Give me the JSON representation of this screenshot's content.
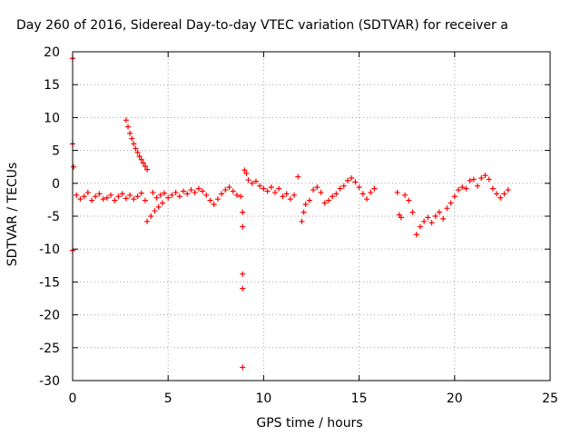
{
  "chart_data": {
    "type": "scatter",
    "title": "Day 260 of 2016, Sidereal Day-to-day VTEC variation (SDTVAR) for receiver a",
    "xlabel": "GPS time / hours",
    "ylabel": "SDTVAR / TECUs",
    "xlim": [
      0,
      25
    ],
    "ylim": [
      -30,
      20
    ],
    "xticks": [
      0,
      5,
      10,
      15,
      20,
      25
    ],
    "yticks": [
      20,
      15,
      10,
      5,
      0,
      -5,
      -10,
      -15,
      -20,
      -25,
      -30
    ],
    "xtick_labels": [
      "0",
      "5",
      "10",
      "15",
      "20",
      "25"
    ],
    "ytick_labels": [
      "20",
      "15",
      "10",
      "5",
      "0",
      "-5",
      "-10",
      "-15",
      "-20",
      "-25",
      "-30"
    ],
    "grid": true,
    "marker": "+",
    "color": "#ff0000",
    "series": [
      {
        "name": "SDTVAR",
        "points": [
          [
            0.0,
            19.0
          ],
          [
            0.0,
            6.0
          ],
          [
            0.05,
            2.5
          ],
          [
            0.0,
            -10.2
          ],
          [
            0.2,
            -1.8
          ],
          [
            0.4,
            -2.4
          ],
          [
            0.6,
            -2.0
          ],
          [
            0.8,
            -1.4
          ],
          [
            1.0,
            -2.6
          ],
          [
            1.2,
            -2.0
          ],
          [
            1.4,
            -1.6
          ],
          [
            1.6,
            -2.4
          ],
          [
            1.8,
            -2.2
          ],
          [
            2.0,
            -1.8
          ],
          [
            2.2,
            -2.6
          ],
          [
            2.4,
            -2.0
          ],
          [
            2.6,
            -1.6
          ],
          [
            2.8,
            -2.3
          ],
          [
            2.8,
            9.6
          ],
          [
            2.9,
            8.6
          ],
          [
            3.0,
            7.6
          ],
          [
            3.1,
            6.8
          ],
          [
            3.2,
            6.0
          ],
          [
            3.3,
            5.3
          ],
          [
            3.4,
            4.7
          ],
          [
            3.5,
            4.1
          ],
          [
            3.6,
            3.6
          ],
          [
            3.7,
            3.1
          ],
          [
            3.8,
            2.6
          ],
          [
            3.9,
            2.1
          ],
          [
            3.0,
            -1.8
          ],
          [
            3.2,
            -2.4
          ],
          [
            3.4,
            -2.0
          ],
          [
            3.6,
            -1.5
          ],
          [
            3.8,
            -2.6
          ],
          [
            3.9,
            -5.8
          ],
          [
            4.1,
            -5.0
          ],
          [
            4.3,
            -4.2
          ],
          [
            4.5,
            -3.6
          ],
          [
            4.7,
            -3.0
          ],
          [
            4.2,
            -1.4
          ],
          [
            4.4,
            -2.2
          ],
          [
            4.6,
            -1.8
          ],
          [
            4.8,
            -1.5
          ],
          [
            5.0,
            -2.2
          ],
          [
            5.2,
            -1.8
          ],
          [
            5.4,
            -1.4
          ],
          [
            5.6,
            -2.0
          ],
          [
            5.8,
            -1.2
          ],
          [
            6.0,
            -1.6
          ],
          [
            6.2,
            -1.0
          ],
          [
            6.4,
            -1.4
          ],
          [
            6.6,
            -0.8
          ],
          [
            6.8,
            -1.2
          ],
          [
            7.0,
            -1.8
          ],
          [
            7.2,
            -2.6
          ],
          [
            7.4,
            -3.2
          ],
          [
            7.6,
            -2.4
          ],
          [
            7.8,
            -1.6
          ],
          [
            8.0,
            -1.0
          ],
          [
            8.2,
            -0.6
          ],
          [
            8.4,
            -1.2
          ],
          [
            8.6,
            -1.8
          ],
          [
            8.8,
            -2.0
          ],
          [
            8.9,
            -4.4
          ],
          [
            8.9,
            -6.6
          ],
          [
            8.9,
            -13.8
          ],
          [
            8.9,
            -16.0
          ],
          [
            8.9,
            -28.0
          ],
          [
            9.0,
            2.0
          ],
          [
            9.1,
            1.5
          ],
          [
            9.2,
            0.5
          ],
          [
            9.4,
            0.0
          ],
          [
            9.6,
            0.3
          ],
          [
            9.8,
            -0.4
          ],
          [
            10.0,
            -0.8
          ],
          [
            10.2,
            -1.2
          ],
          [
            10.4,
            -0.6
          ],
          [
            10.6,
            -1.4
          ],
          [
            10.8,
            -0.8
          ],
          [
            11.0,
            -2.0
          ],
          [
            11.2,
            -1.6
          ],
          [
            11.4,
            -2.4
          ],
          [
            11.6,
            -1.8
          ],
          [
            11.8,
            1.0
          ],
          [
            12.0,
            -5.8
          ],
          [
            12.1,
            -4.4
          ],
          [
            12.2,
            -3.2
          ],
          [
            12.4,
            -2.6
          ],
          [
            12.6,
            -1.0
          ],
          [
            12.8,
            -0.6
          ],
          [
            13.0,
            -1.4
          ],
          [
            13.2,
            -3.0
          ],
          [
            13.4,
            -2.6
          ],
          [
            13.6,
            -2.0
          ],
          [
            13.8,
            -1.6
          ],
          [
            14.0,
            -0.8
          ],
          [
            14.2,
            -0.4
          ],
          [
            14.4,
            0.4
          ],
          [
            14.6,
            0.8
          ],
          [
            14.8,
            0.2
          ],
          [
            15.0,
            -0.6
          ],
          [
            15.2,
            -1.6
          ],
          [
            15.4,
            -2.4
          ],
          [
            15.6,
            -1.4
          ],
          [
            15.8,
            -0.8
          ],
          [
            17.0,
            -1.4
          ],
          [
            17.1,
            -4.8
          ],
          [
            17.2,
            -5.2
          ],
          [
            17.4,
            -1.8
          ],
          [
            17.6,
            -2.6
          ],
          [
            17.8,
            -4.4
          ],
          [
            18.0,
            -7.8
          ],
          [
            18.2,
            -6.6
          ],
          [
            18.4,
            -5.8
          ],
          [
            18.6,
            -5.2
          ],
          [
            18.8,
            -6.0
          ],
          [
            19.0,
            -5.0
          ],
          [
            19.2,
            -4.4
          ],
          [
            19.4,
            -5.4
          ],
          [
            19.6,
            -3.8
          ],
          [
            19.8,
            -3.0
          ],
          [
            20.0,
            -2.0
          ],
          [
            20.2,
            -1.0
          ],
          [
            20.4,
            -0.6
          ],
          [
            20.6,
            -0.8
          ],
          [
            20.8,
            0.4
          ],
          [
            21.0,
            0.6
          ],
          [
            21.2,
            -0.4
          ],
          [
            21.4,
            0.8
          ],
          [
            21.6,
            1.2
          ],
          [
            21.8,
            0.6
          ],
          [
            22.0,
            -0.8
          ],
          [
            22.2,
            -1.6
          ],
          [
            22.4,
            -2.2
          ],
          [
            22.6,
            -1.6
          ],
          [
            22.8,
            -1.0
          ]
        ]
      }
    ]
  }
}
